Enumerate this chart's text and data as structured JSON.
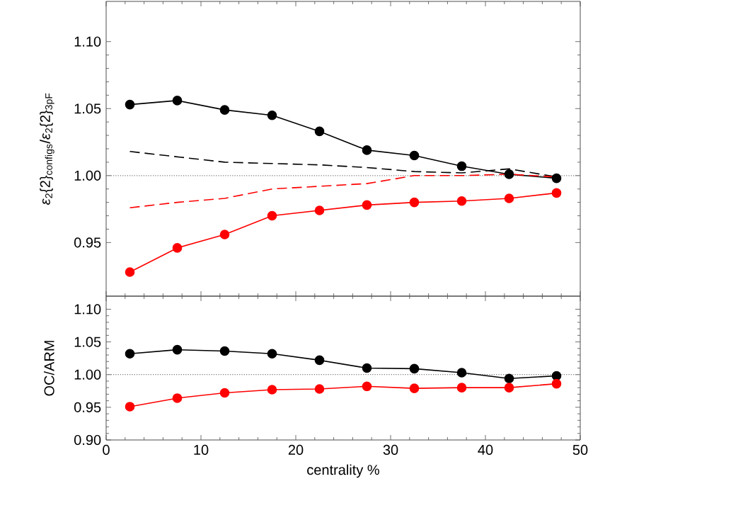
{
  "chart_data": [
    {
      "type": "line",
      "ylabel": "*ε*$_{2}${2}$_{configs}$/*ε*$_{2}${2}$_{3pF}$",
      "x": [
        2.5,
        7.5,
        12.5,
        17.5,
        22.5,
        27.5,
        32.5,
        37.5,
        42.5,
        47.5
      ],
      "xlim": [
        0,
        50
      ],
      "xticks": [
        0,
        10,
        20,
        30,
        40,
        50
      ],
      "ylim": [
        0.91,
        1.13
      ],
      "yticks": [
        {
          "value": 0.95,
          "label": "0.95"
        },
        {
          "value": 1.0,
          "label": "1.00"
        },
        {
          "value": 1.05,
          "label": "1.05"
        },
        {
          "value": 1.1,
          "label": "1.10"
        }
      ],
      "tick_labels": "y",
      "series": [
        {
          "color": "#000000",
          "marker": "circle",
          "line_style": "solid",
          "values": [
            1.053,
            1.056,
            1.049,
            1.045,
            1.033,
            1.019,
            1.015,
            1.007,
            1.001,
            0.998
          ]
        },
        {
          "color": "#ff0000",
          "marker": "circle",
          "line_style": "solid",
          "values": [
            0.928,
            0.946,
            0.956,
            0.97,
            0.974,
            0.978,
            0.98,
            0.981,
            0.983,
            0.987
          ]
        },
        {
          "color": "#000000",
          "marker": "none",
          "line_style": "dashed",
          "values": [
            1.018,
            1.014,
            1.01,
            1.009,
            1.008,
            1.006,
            1.003,
            1.002,
            1.005,
            0.999
          ]
        },
        {
          "color": "#ff0000",
          "marker": "none",
          "line_style": "dashed",
          "values": [
            0.976,
            0.98,
            0.983,
            0.99,
            0.992,
            0.994,
            1.0,
            1.0,
            1.001,
            0.999
          ]
        }
      ],
      "ref_lines": [
        {
          "axis": "y",
          "value": 1.0,
          "color": "#808080",
          "line_style": "dotted"
        }
      ]
    },
    {
      "type": "line",
      "xlabel": "centrality %",
      "ylabel": "OC/ARM",
      "x": [
        2.5,
        7.5,
        12.5,
        17.5,
        22.5,
        27.5,
        32.5,
        37.5,
        42.5,
        47.5
      ],
      "xlim": [
        0,
        50
      ],
      "xticks": [
        0,
        10,
        20,
        30,
        40,
        50
      ],
      "ylim": [
        0.9,
        1.12
      ],
      "yticks": [
        {
          "value": 0.9,
          "label": "0.90"
        },
        {
          "value": 0.95,
          "label": "0.95"
        },
        {
          "value": 1.0,
          "label": "1.00"
        },
        {
          "value": 1.05,
          "label": "1.05"
        },
        {
          "value": 1.1,
          "label": "1.10"
        }
      ],
      "series": [
        {
          "color": "#000000",
          "marker": "circle",
          "line_style": "solid",
          "values": [
            1.032,
            1.038,
            1.036,
            1.032,
            1.022,
            1.01,
            1.009,
            1.003,
            0.994,
            0.998
          ]
        },
        {
          "color": "#ff0000",
          "marker": "circle",
          "line_style": "solid",
          "values": [
            0.951,
            0.964,
            0.972,
            0.977,
            0.978,
            0.982,
            0.979,
            0.98,
            0.98,
            0.986
          ]
        }
      ],
      "ref_lines": [
        {
          "axis": "y",
          "value": 1.0,
          "color": "#808080",
          "line_style": "dotted"
        }
      ]
    }
  ]
}
